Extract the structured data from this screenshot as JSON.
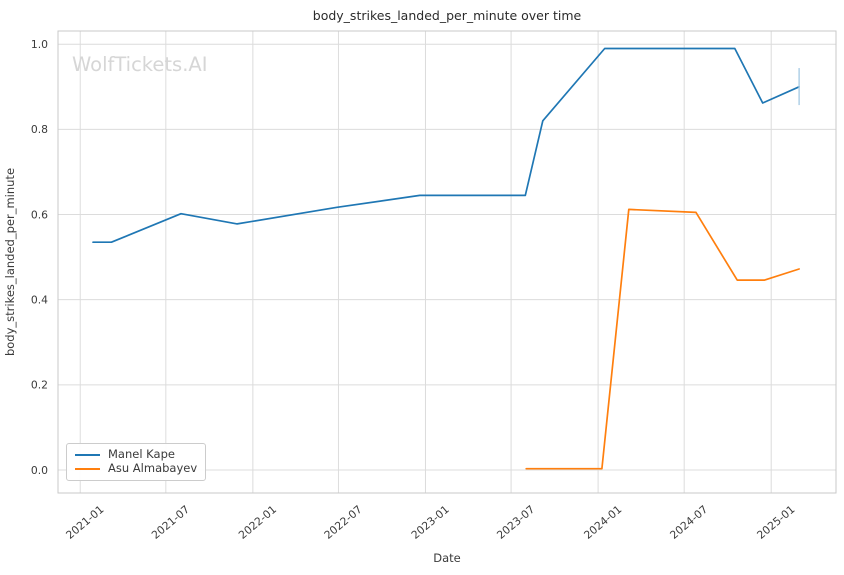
{
  "watermark": "WolfTickets.AI",
  "chart_data": {
    "type": "line",
    "title": "body_strikes_landed_per_minute over time",
    "xlabel": "Date",
    "ylabel": "body_strikes_landed_per_minute",
    "x_ticks": [
      "2021-01",
      "2021-07",
      "2022-01",
      "2022-07",
      "2023-01",
      "2023-07",
      "2024-01",
      "2024-07",
      "2025-01"
    ],
    "y_ticks": [
      0.0,
      0.2,
      0.4,
      0.6,
      0.8,
      1.0
    ],
    "x_range": [
      "2020-11-15",
      "2025-05-18"
    ],
    "ylim": [
      -0.054,
      1.031
    ],
    "grid": true,
    "legend_position": "lower left",
    "colors": {
      "grid": "#dcdcdc",
      "spine": "#c9c9c9",
      "tick_text": "#3b3b3b",
      "title_text": "#2b2b2b",
      "watermark": "#d6d6d6"
    },
    "series": [
      {
        "name": "Manel Kape",
        "color": "#1f77b4",
        "points": [
          [
            "2021-01-28",
            0.535
          ],
          [
            "2021-03-08",
            0.535
          ],
          [
            "2021-08-02",
            0.602
          ],
          [
            "2021-11-29",
            0.578
          ],
          [
            "2022-06-28",
            0.617
          ],
          [
            "2022-12-20",
            0.645
          ],
          [
            "2023-07-31",
            0.645
          ],
          [
            "2023-09-06",
            0.82
          ],
          [
            "2024-01-15",
            0.99
          ],
          [
            "2024-10-16",
            0.99
          ],
          [
            "2024-12-14",
            0.862
          ],
          [
            "2025-03-01",
            0.9
          ]
        ]
      },
      {
        "name": "Asu Almabayev",
        "color": "#ff7f0e",
        "points": [
          [
            "2023-08-02",
            0.003
          ],
          [
            "2024-01-09",
            0.003
          ],
          [
            "2024-03-06",
            0.612
          ],
          [
            "2024-07-26",
            0.605
          ],
          [
            "2024-10-21",
            0.446
          ],
          [
            "2024-12-18",
            0.446
          ],
          [
            "2025-03-01",
            0.472
          ]
        ]
      }
    ],
    "error_bar": {
      "series": "Manel Kape",
      "date": "2025-03-01",
      "low": 0.857,
      "high": 0.944,
      "color": "#aacde6"
    }
  }
}
